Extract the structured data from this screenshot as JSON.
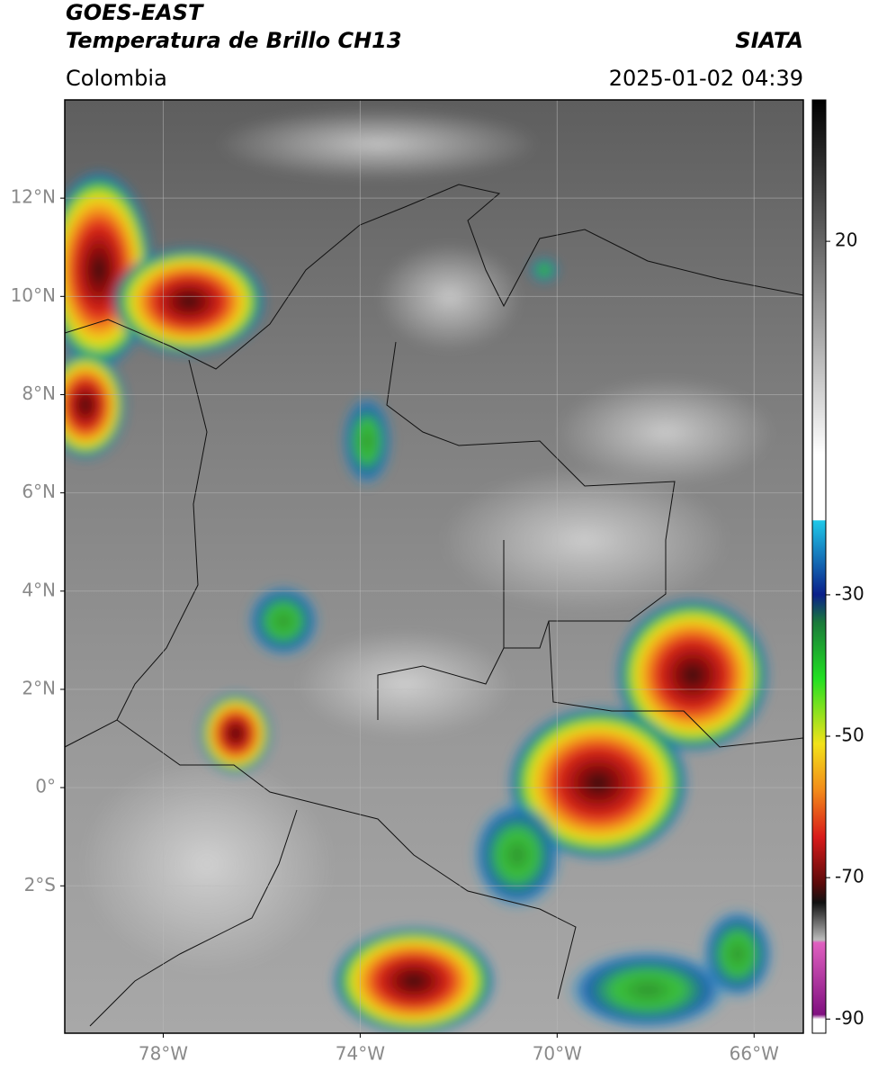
{
  "header": {
    "title": "GOES-EAST",
    "subtitle": "Temperatura de Brillo CH13",
    "source": "SIATA",
    "region": "Colombia",
    "datetime": "2025-01-02 04:39"
  },
  "map": {
    "xlim": [
      -80,
      -65
    ],
    "ylim": [
      -5,
      14
    ],
    "xticks": [
      {
        "value": -78,
        "label": "78°W"
      },
      {
        "value": -74,
        "label": "74°W"
      },
      {
        "value": -70,
        "label": "70°W"
      },
      {
        "value": -66,
        "label": "66°W"
      }
    ],
    "yticks": [
      {
        "value": 12,
        "label": "12°N"
      },
      {
        "value": 10,
        "label": "10°N"
      },
      {
        "value": 8,
        "label": "8°N"
      },
      {
        "value": 6,
        "label": "6°N"
      },
      {
        "value": 4,
        "label": "4°N"
      },
      {
        "value": 2,
        "label": "2°N"
      },
      {
        "value": 0,
        "label": "0°"
      },
      {
        "value": -2,
        "label": "2°S"
      }
    ],
    "grid": true
  },
  "colorbar": {
    "lim": [
      -92,
      40
    ],
    "ticks": [
      20,
      -30,
      -50,
      -70,
      -90
    ]
  }
}
